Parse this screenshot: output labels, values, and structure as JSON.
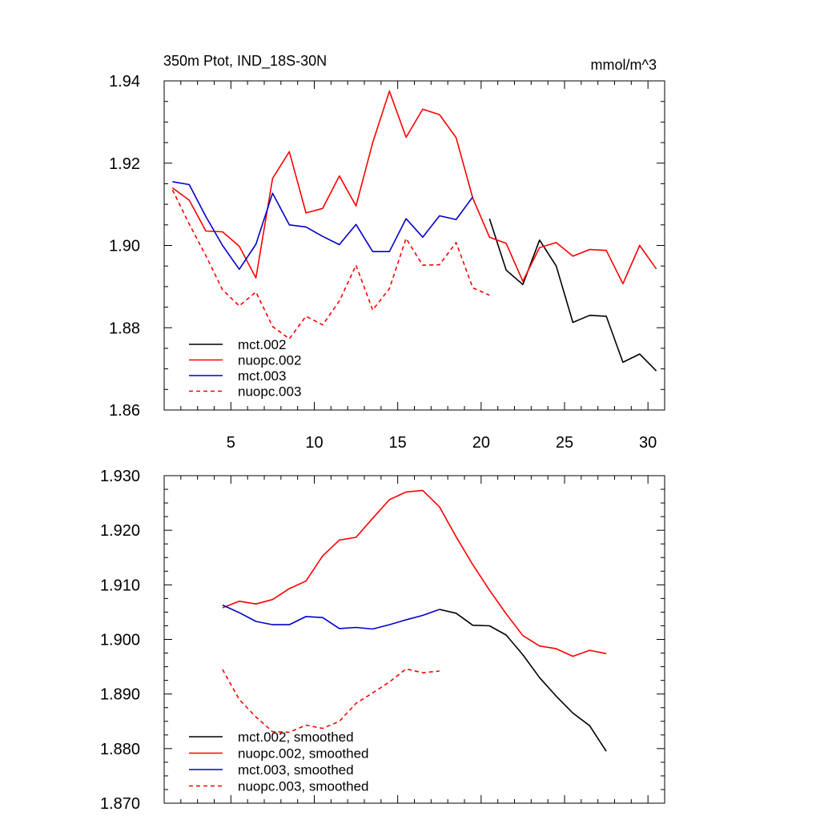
{
  "chart_data": [
    {
      "type": "line",
      "title": "350m Ptot, IND_18S-30N",
      "units": "mmol/m^3",
      "xlim": [
        1,
        31
      ],
      "ylim": [
        1.86,
        1.94
      ],
      "xticks": [
        5,
        10,
        15,
        20,
        25,
        30
      ],
      "yticks": [
        1.86,
        1.88,
        1.9,
        1.92,
        1.94
      ],
      "ytick_labels": [
        "1.86",
        "1.88",
        "1.90",
        "1.92",
        "1.94"
      ],
      "xtick_labels": [
        "5",
        "10",
        "15",
        "20",
        "25",
        "30"
      ],
      "legend_position": "bottom-left",
      "series": [
        {
          "name": "mct.002",
          "color": "#000000",
          "dash": "solid",
          "x": [
            20.5,
            21.5,
            22.5,
            23.5,
            24.5,
            25.5,
            26.5,
            27.5,
            28.5,
            29.5,
            30.5
          ],
          "values": [
            1.9065,
            1.894,
            1.8905,
            1.9013,
            1.895,
            1.8813,
            1.883,
            1.8828,
            1.8716,
            1.8736,
            1.8695
          ]
        },
        {
          "name": "nuopc.002",
          "color": "#ff0000",
          "dash": "solid",
          "x": [
            1.5,
            2.5,
            3.5,
            4.5,
            5.5,
            6.5,
            7.5,
            8.5,
            9.5,
            10.5,
            11.5,
            12.5,
            13.5,
            14.5,
            15.5,
            16.5,
            17.5,
            18.5,
            19.5,
            20.5,
            21.5,
            22.5,
            23.5,
            24.5,
            25.5,
            26.5,
            27.5,
            28.5,
            29.5,
            30.5
          ],
          "values": [
            1.914,
            1.911,
            1.9035,
            1.9033,
            1.8998,
            1.8921,
            1.9163,
            1.9228,
            1.9079,
            1.909,
            1.9169,
            1.9096,
            1.925,
            1.9375,
            1.9263,
            1.9331,
            1.9318,
            1.9262,
            1.9115,
            1.902,
            1.9005,
            1.8913,
            1.8995,
            1.9007,
            1.8974,
            1.899,
            1.8988,
            1.8907,
            1.9,
            1.8943
          ]
        },
        {
          "name": "mct.003",
          "color": "#0000cc",
          "dash": "solid",
          "x": [
            1.5,
            2.5,
            3.5,
            4.5,
            5.5,
            6.5,
            7.5,
            8.5,
            9.5,
            10.5,
            11.5,
            12.5,
            13.5,
            14.5,
            15.5,
            16.5,
            17.5,
            18.5,
            19.5
          ],
          "values": [
            1.9155,
            1.9148,
            1.907,
            1.9,
            1.8942,
            1.9003,
            1.9127,
            1.905,
            1.9045,
            1.9022,
            1.9002,
            1.9051,
            1.8985,
            1.8985,
            1.9065,
            1.902,
            1.9072,
            1.9063,
            1.9118
          ]
        },
        {
          "name": "nuopc.003",
          "color": "#ff0000",
          "dash": "dashed",
          "x": [
            1.5,
            2.5,
            3.5,
            4.5,
            5.5,
            6.5,
            7.5,
            8.5,
            9.5,
            10.5,
            11.5,
            12.5,
            13.5,
            14.5,
            15.5,
            16.5,
            17.5,
            18.5,
            19.5,
            20.5
          ],
          "values": [
            1.9135,
            1.9052,
            1.8975,
            1.8892,
            1.8853,
            1.8887,
            1.8803,
            1.8773,
            1.8828,
            1.8807,
            1.8865,
            1.8952,
            1.8843,
            1.8895,
            1.9017,
            1.8952,
            1.8953,
            1.9007,
            1.8897,
            1.8879
          ]
        }
      ]
    },
    {
      "type": "line",
      "xlim": [
        1,
        31
      ],
      "ylim": [
        1.87,
        1.93
      ],
      "xticks": [
        5,
        10,
        15,
        20,
        25,
        30
      ],
      "yticks": [
        1.87,
        1.88,
        1.89,
        1.9,
        1.91,
        1.92,
        1.93
      ],
      "ytick_labels": [
        "1.870",
        "1.880",
        "1.890",
        "1.900",
        "1.910",
        "1.920",
        "1.930"
      ],
      "legend_position": "bottom-left",
      "series": [
        {
          "name": "mct.002, smoothed",
          "color": "#000000",
          "dash": "solid",
          "x": [
            17.5,
            18.5,
            19.5,
            20.5,
            21.5,
            22.5,
            23.5,
            24.5,
            25.5,
            26.5,
            27.5
          ],
          "values": [
            1.9055,
            1.9048,
            1.9026,
            1.9025,
            1.9008,
            1.8972,
            1.893,
            1.8896,
            1.8865,
            1.8842,
            1.8795
          ]
        },
        {
          "name": "nuopc.002, smoothed",
          "color": "#ff0000",
          "dash": "solid",
          "x": [
            4.5,
            5.5,
            6.5,
            7.5,
            8.5,
            9.5,
            10.5,
            11.5,
            12.5,
            13.5,
            14.5,
            15.5,
            16.5,
            17.5,
            18.5,
            19.5,
            20.5,
            21.5,
            22.5,
            23.5,
            24.5,
            25.5,
            26.5,
            27.5
          ],
          "values": [
            1.9058,
            1.907,
            1.9065,
            1.9073,
            1.9093,
            1.9107,
            1.9153,
            1.9182,
            1.9187,
            1.9222,
            1.9256,
            1.927,
            1.9273,
            1.9243,
            1.9188,
            1.9137,
            1.909,
            1.9047,
            1.9007,
            1.8988,
            1.8983,
            1.8969,
            1.898,
            1.8974
          ]
        },
        {
          "name": "mct.003, smoothed",
          "color": "#0000cc",
          "dash": "solid",
          "x": [
            4.5,
            5.5,
            6.5,
            7.5,
            8.5,
            9.5,
            10.5,
            11.5,
            12.5,
            13.5,
            14.5,
            15.5,
            16.5,
            17.5
          ],
          "values": [
            1.9063,
            1.9049,
            1.9033,
            1.9027,
            1.9027,
            1.9042,
            1.904,
            1.902,
            1.9022,
            1.9019,
            1.9027,
            1.9036,
            1.9044,
            1.9055
          ]
        },
        {
          "name": "nuopc.003, smoothed",
          "color": "#ff0000",
          "dash": "dashed",
          "x": [
            4.5,
            5.5,
            6.5,
            7.5,
            8.5,
            9.5,
            10.5,
            11.5,
            12.5,
            13.5,
            14.5,
            15.5,
            16.5,
            17.5
          ],
          "values": [
            1.8945,
            1.889,
            1.8858,
            1.8831,
            1.883,
            1.8843,
            1.8837,
            1.885,
            1.8883,
            1.8902,
            1.8922,
            1.8946,
            1.8939,
            1.8942
          ]
        }
      ]
    }
  ]
}
